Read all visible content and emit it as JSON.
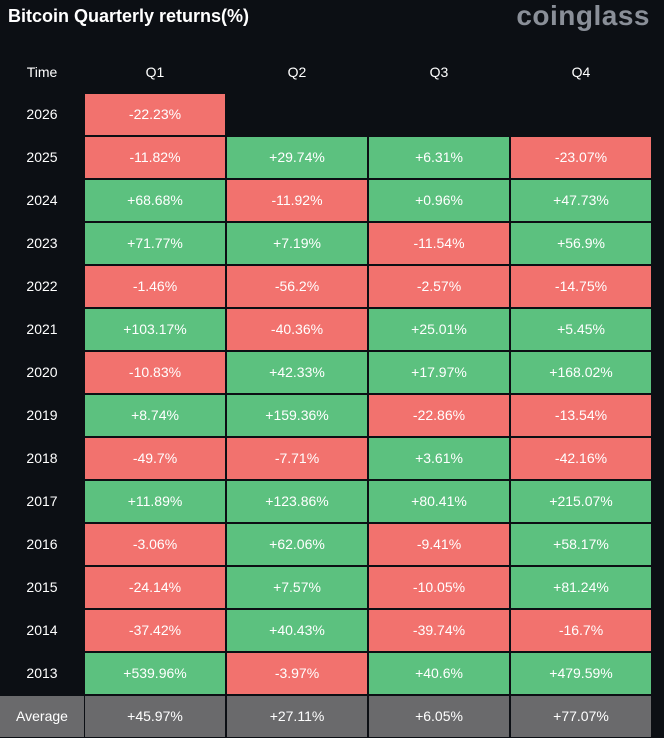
{
  "header": {
    "title": "Bitcoin Quarterly returns(%)",
    "logo": "coinglass"
  },
  "table": {
    "columns": [
      "Time",
      "Q1",
      "Q2",
      "Q3",
      "Q4"
    ],
    "rows": [
      [
        "2026",
        "-22.23%",
        null,
        null,
        null
      ],
      [
        "2025",
        "-11.82%",
        "+29.74%",
        "+6.31%",
        "-23.07%"
      ],
      [
        "2024",
        "+68.68%",
        "-11.92%",
        "+0.96%",
        "+47.73%"
      ],
      [
        "2023",
        "+71.77%",
        "+7.19%",
        "-11.54%",
        "+56.9%"
      ],
      [
        "2022",
        "-1.46%",
        "-56.2%",
        "-2.57%",
        "-14.75%"
      ],
      [
        "2021",
        "+103.17%",
        "-40.36%",
        "+25.01%",
        "+5.45%"
      ],
      [
        "2020",
        "-10.83%",
        "+42.33%",
        "+17.97%",
        "+168.02%"
      ],
      [
        "2019",
        "+8.74%",
        "+159.36%",
        "-22.86%",
        "-13.54%"
      ],
      [
        "2018",
        "-49.7%",
        "-7.71%",
        "+3.61%",
        "-42.16%"
      ],
      [
        "2017",
        "+11.89%",
        "+123.86%",
        "+80.41%",
        "+215.07%"
      ],
      [
        "2016",
        "-3.06%",
        "+62.06%",
        "-9.41%",
        "+58.17%"
      ],
      [
        "2015",
        "-24.14%",
        "+7.57%",
        "-10.05%",
        "+81.24%"
      ],
      [
        "2014",
        "-37.42%",
        "+40.43%",
        "-39.74%",
        "-16.7%"
      ],
      [
        "2013",
        "+539.96%",
        "-3.97%",
        "+40.6%",
        "+479.59%"
      ]
    ],
    "average": [
      "Average",
      "+45.97%",
      "+27.11%",
      "+6.05%",
      "+77.07%"
    ],
    "colors": {
      "positive": "#5cc17f",
      "negative": "#f2726e",
      "average": "#6a6a6c"
    }
  }
}
